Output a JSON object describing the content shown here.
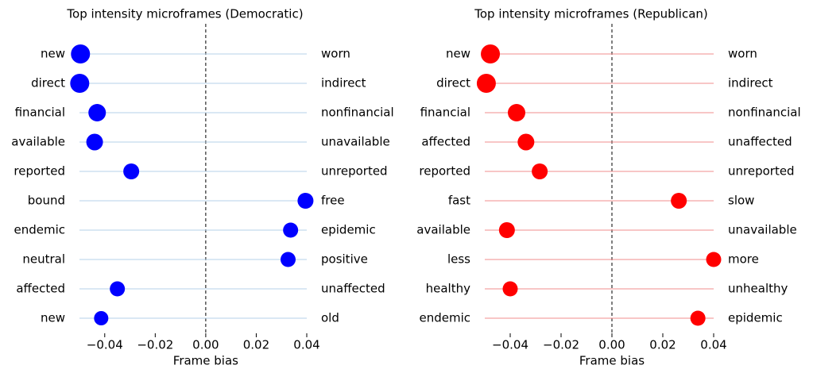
{
  "chart_data": [
    {
      "type": "dot",
      "title": "Top intensity microframes (Democratic)",
      "xlabel": "Frame bias",
      "categories": [
        "new",
        "direct",
        "financial",
        "available",
        "reported",
        "bound",
        "endemic",
        "neutral",
        "affected",
        "new"
      ],
      "categories_right": [
        "worn",
        "indirect",
        "nonfinancial",
        "unavailable",
        "unreported",
        "free",
        "epidemic",
        "positive",
        "unaffected",
        "old"
      ],
      "series": [
        {
          "color": "#0000ff",
          "line_color": "#b6d2ea",
          "values": [
            -0.0496,
            -0.0499,
            -0.043,
            -0.044,
            -0.0295,
            0.0395,
            0.0336,
            0.0326,
            -0.035,
            -0.0414
          ],
          "sizes": [
            12,
            12,
            11,
            10.5,
            10,
            10,
            9.5,
            9.5,
            9.5,
            9
          ]
        }
      ],
      "xlim": [
        -0.05,
        0.04
      ],
      "xticks": [
        {
          "value": -0.04,
          "label": "−0.04"
        },
        {
          "value": -0.02,
          "label": "−0.02"
        },
        {
          "value": 0,
          "label": "0.00"
        },
        0.02,
        0.04
      ]
    },
    {
      "type": "dot",
      "title": "Top intensity microframes (Republican)",
      "xlabel": "Frame bias",
      "categories": [
        "new",
        "direct",
        "financial",
        "affected",
        "reported",
        "fast",
        "available",
        "less",
        "healthy",
        "endemic"
      ],
      "categories_right": [
        "worn",
        "indirect",
        "nonfinancial",
        "unaffected",
        "unreported",
        "slow",
        "unavailable",
        "more",
        "unhealthy",
        "epidemic"
      ],
      "series": [
        {
          "color": "#ff0000",
          "line_color": "#f28c8c",
          "values": [
            -0.0478,
            -0.0494,
            -0.0375,
            -0.0338,
            -0.0284,
            0.0263,
            -0.0413,
            0.04,
            -0.04,
            0.0338
          ],
          "sizes": [
            12,
            12,
            11,
            10.5,
            10,
            10,
            10,
            9.5,
            9.5,
            9.5
          ]
        }
      ],
      "xlim": [
        -0.05,
        0.04
      ],
      "xticks": [
        {
          "value": -0.04,
          "label": "−0.04"
        },
        {
          "value": -0.02,
          "label": "−0.02"
        },
        {
          "value": 0,
          "label": "0.00"
        },
        0.02,
        0.04
      ]
    }
  ]
}
